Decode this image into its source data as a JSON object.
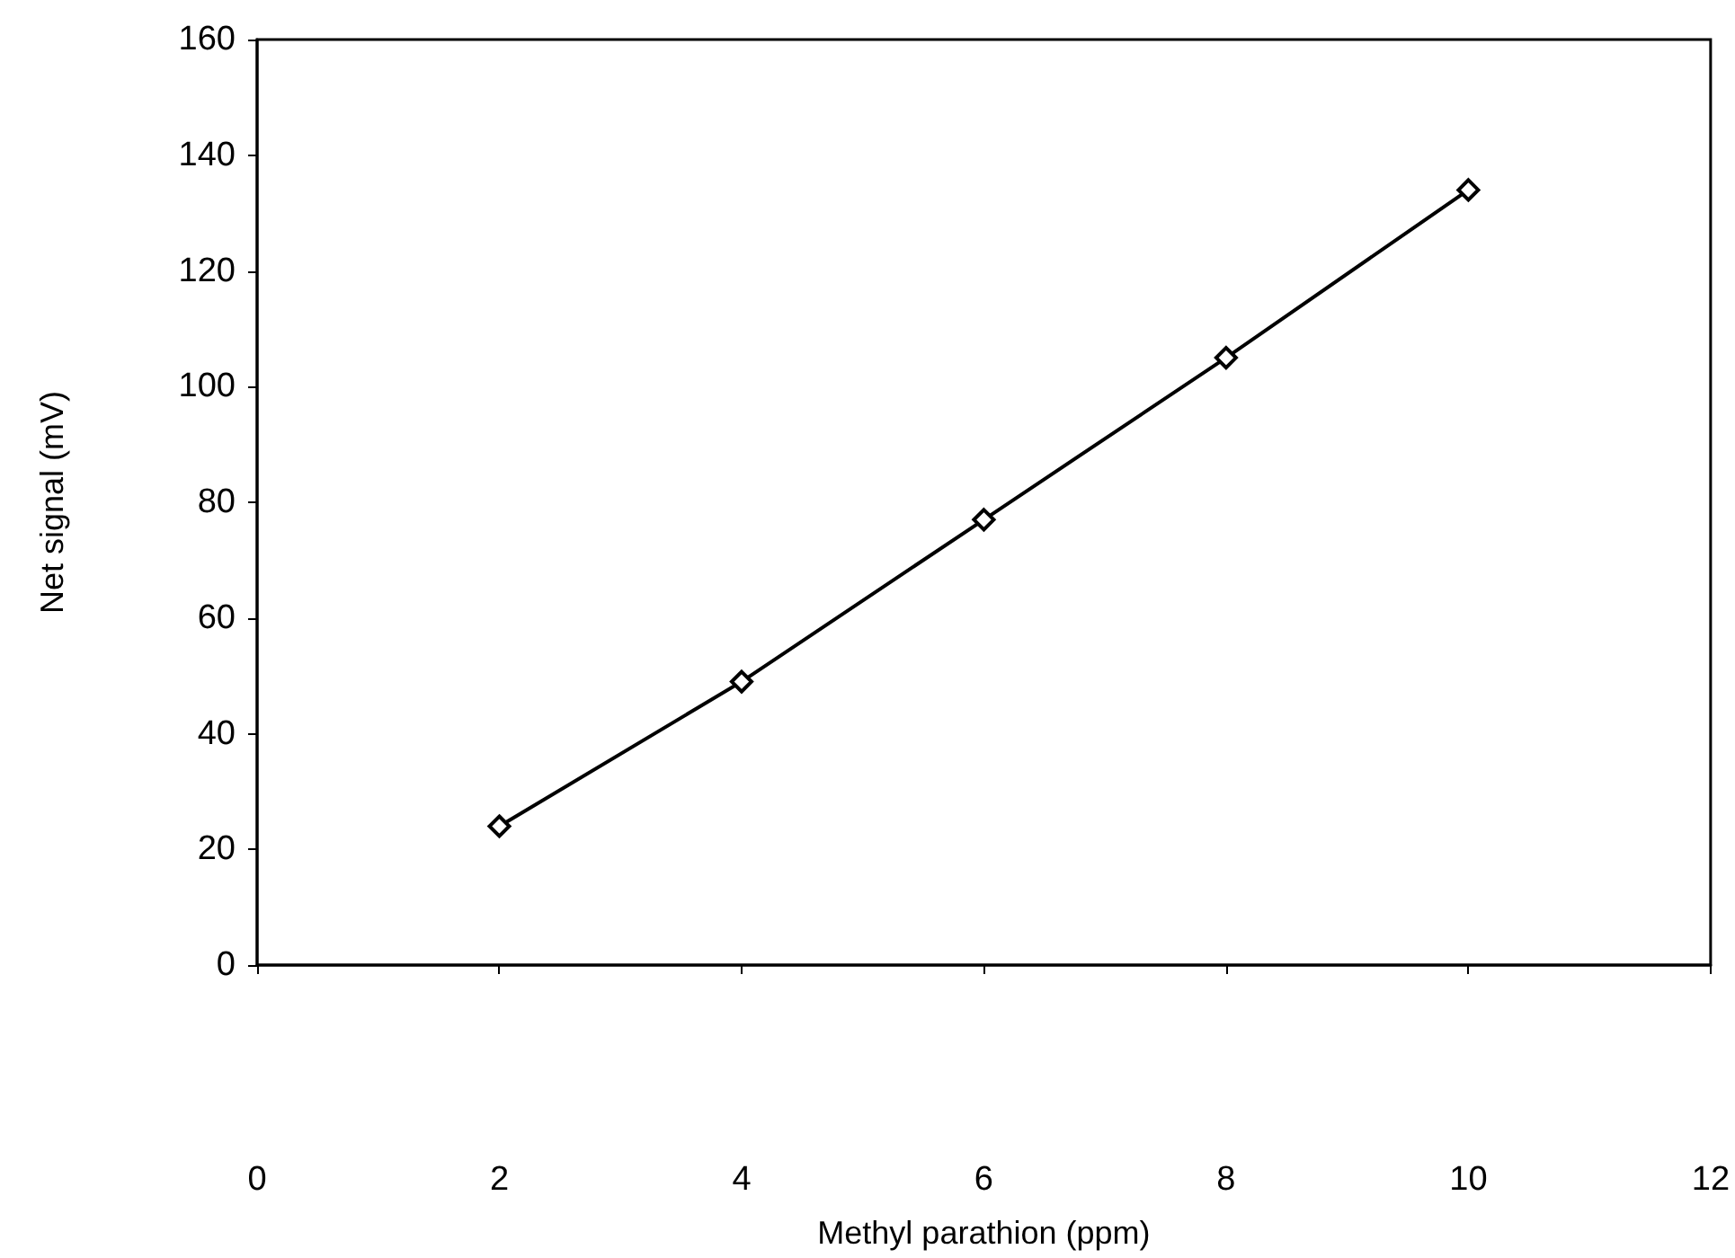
{
  "chart_data": {
    "type": "line",
    "xlabel": "Methyl parathion (ppm)",
    "ylabel": "Net signal (mV)",
    "x": [
      2,
      4,
      6,
      8,
      10
    ],
    "series": [
      {
        "color": "#000000",
        "values": [
          24,
          49,
          77,
          105,
          134
        ]
      }
    ],
    "xlim": [
      0,
      12
    ],
    "xticks": [
      0,
      2,
      4,
      6,
      8,
      10,
      12
    ],
    "ylim": [
      0,
      160
    ],
    "yticks": [
      0,
      20,
      40,
      60,
      80,
      100,
      120,
      140,
      160
    ],
    "marker": "diamond",
    "line_style": "solid"
  }
}
